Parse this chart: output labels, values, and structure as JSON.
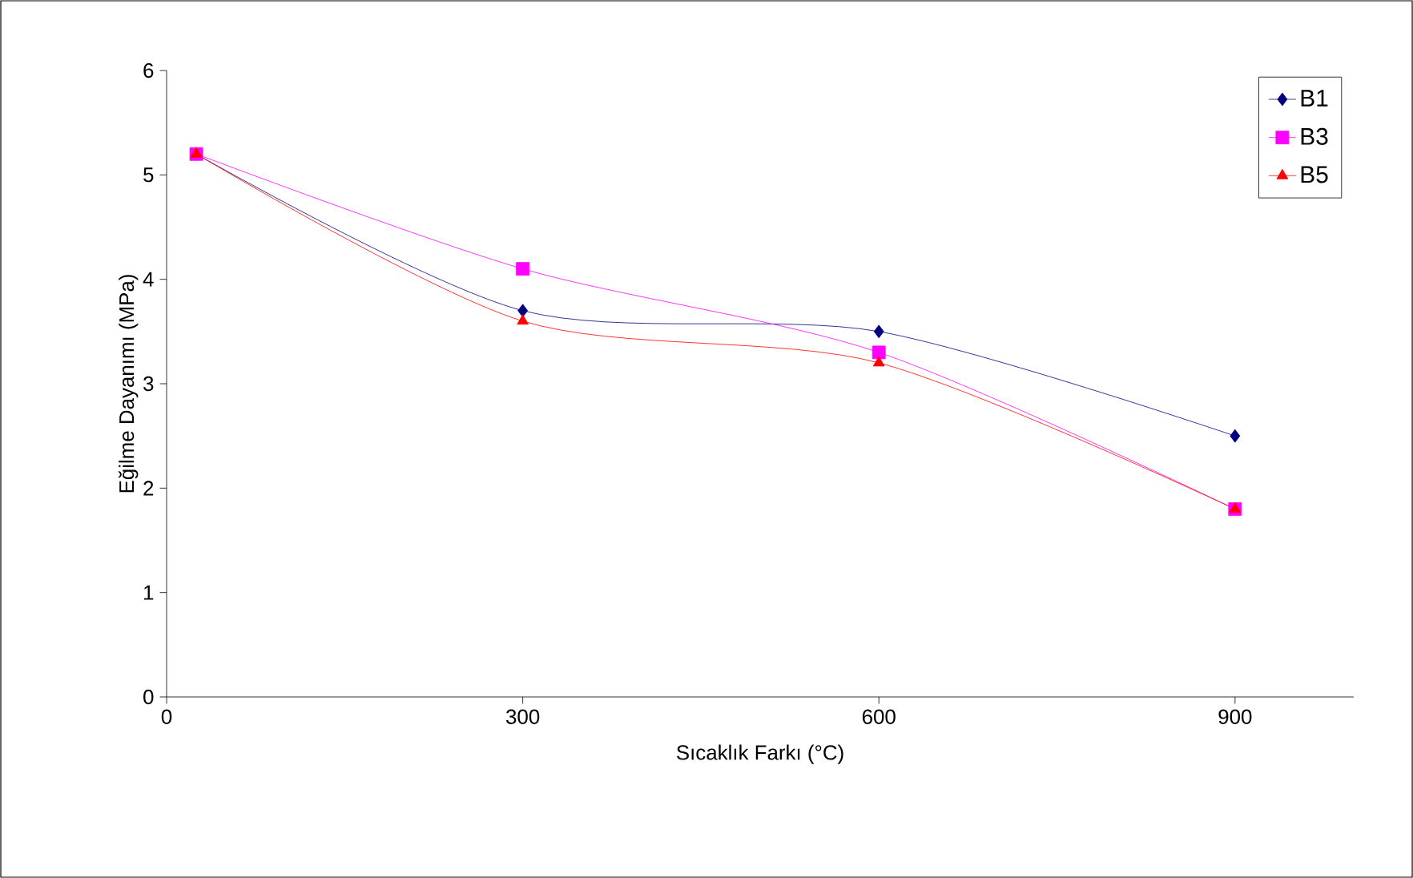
{
  "chart_data": {
    "type": "line",
    "xlabel": "Sıcaklık Farkı (°C)",
    "ylabel": "Eğilme Dayanımı (MPa)",
    "x": [
      25,
      300,
      600,
      900
    ],
    "series": [
      {
        "name": "B1",
        "color": "#000080",
        "marker": "diamond",
        "values": [
          5.2,
          3.7,
          3.5,
          2.5
        ]
      },
      {
        "name": "B3",
        "color": "#ff00ff",
        "marker": "square",
        "values": [
          5.2,
          4.1,
          3.3,
          1.8
        ]
      },
      {
        "name": "B5",
        "color": "#ff0000",
        "marker": "triangle",
        "values": [
          5.2,
          3.6,
          3.2,
          1.8
        ]
      }
    ],
    "xlim": [
      0,
      1000
    ],
    "xticks": [
      0,
      300,
      600,
      900
    ],
    "ylim": [
      0,
      6
    ],
    "yticks": [
      0,
      1,
      2,
      3,
      4,
      5,
      6
    ],
    "grid": false,
    "legend": "top right",
    "line_style": "solid"
  }
}
